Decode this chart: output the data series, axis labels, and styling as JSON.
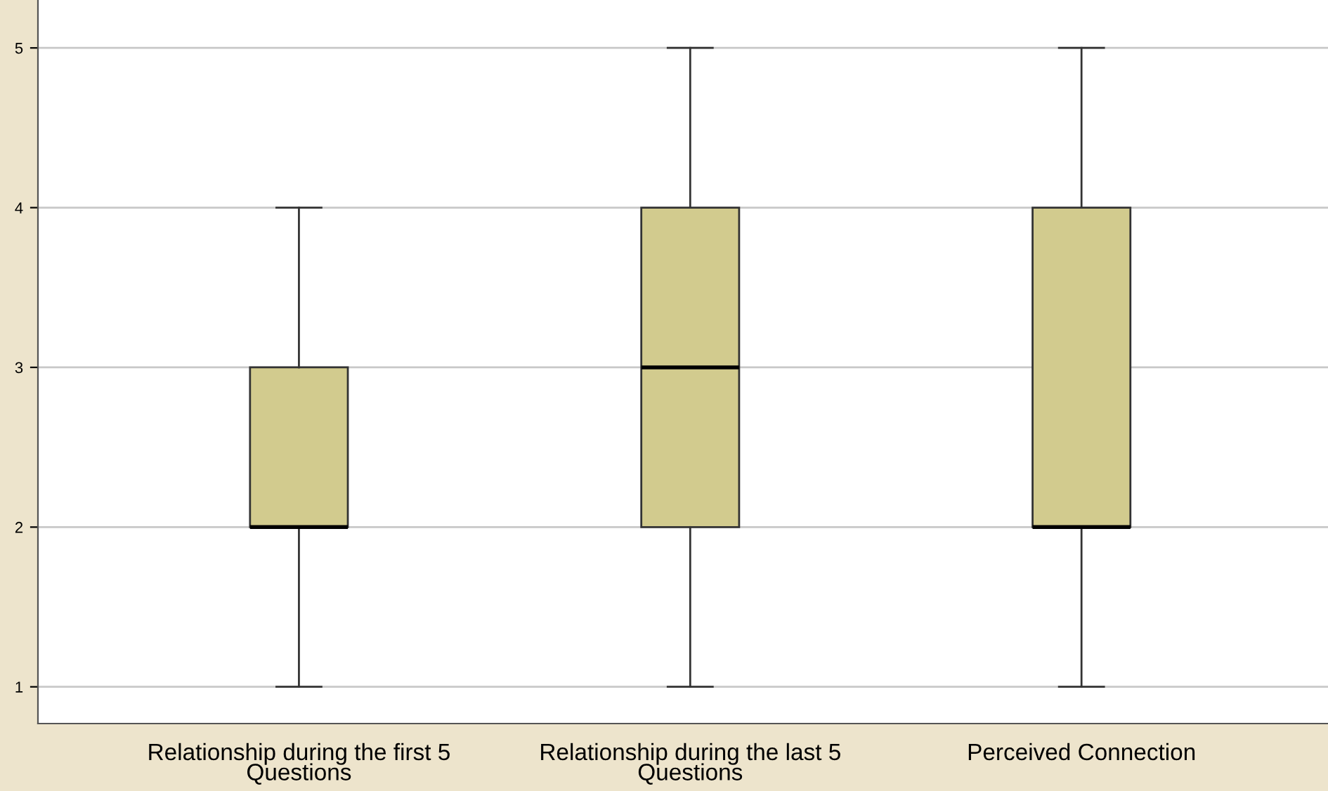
{
  "chart_data": {
    "type": "box",
    "categories": [
      "Relationship during the first 5 Questions",
      "Relationship during the last 5 Questions",
      "Perceived Connection"
    ],
    "boxes": [
      {
        "low": 1,
        "q1": 2,
        "median": 2,
        "q3": 3,
        "high": 4
      },
      {
        "low": 1,
        "q1": 2,
        "median": 3,
        "q3": 4,
        "high": 5
      },
      {
        "low": 1,
        "q1": 2,
        "median": 2,
        "q3": 4,
        "high": 5
      }
    ],
    "color": "#d2cb8e",
    "ylim": [
      0.77,
      5.3
    ],
    "yticks": [
      1,
      2,
      3,
      4,
      5
    ],
    "grid": "y"
  }
}
